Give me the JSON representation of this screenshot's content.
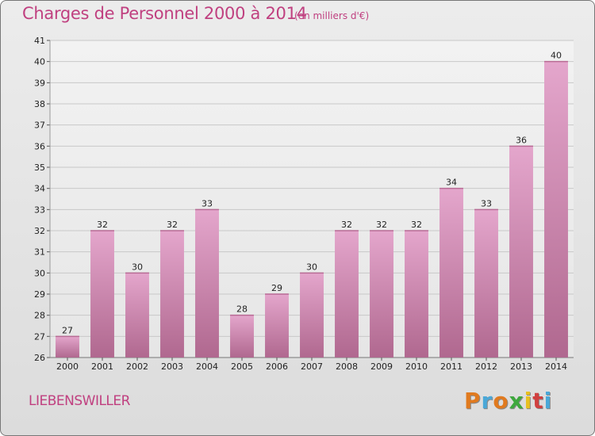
{
  "title": "Charges de Personnel 2000 à 2014",
  "subtitle": "(en milliers d'€)",
  "commune": "LIEBENSWILLER",
  "logo": {
    "text": "Proxiti",
    "letters": [
      {
        "ch": "P",
        "color": "#e07a1f"
      },
      {
        "ch": "r",
        "color": "#4aa8d8"
      },
      {
        "ch": "o",
        "color": "#e07a1f"
      },
      {
        "ch": "x",
        "color": "#3ea83e"
      },
      {
        "ch": "i",
        "color": "#e8c020"
      },
      {
        "ch": "t",
        "color": "#d04040"
      },
      {
        "ch": "i",
        "color": "#4aa8d8"
      }
    ]
  },
  "chart_data": {
    "type": "bar",
    "categories": [
      "2000",
      "2001",
      "2002",
      "2003",
      "2004",
      "2005",
      "2006",
      "2007",
      "2008",
      "2009",
      "2010",
      "2011",
      "2012",
      "2013",
      "2014"
    ],
    "values": [
      27,
      32,
      30,
      32,
      33,
      28,
      29,
      30,
      32,
      32,
      32,
      34,
      33,
      36,
      40
    ],
    "ylim": [
      26,
      41
    ],
    "yticks": [
      26,
      27,
      28,
      29,
      30,
      31,
      32,
      33,
      34,
      35,
      36,
      37,
      38,
      39,
      40,
      41
    ],
    "grid": true,
    "bar_color_top": "#e4a6cc",
    "bar_color_bottom": "#b0688f"
  }
}
